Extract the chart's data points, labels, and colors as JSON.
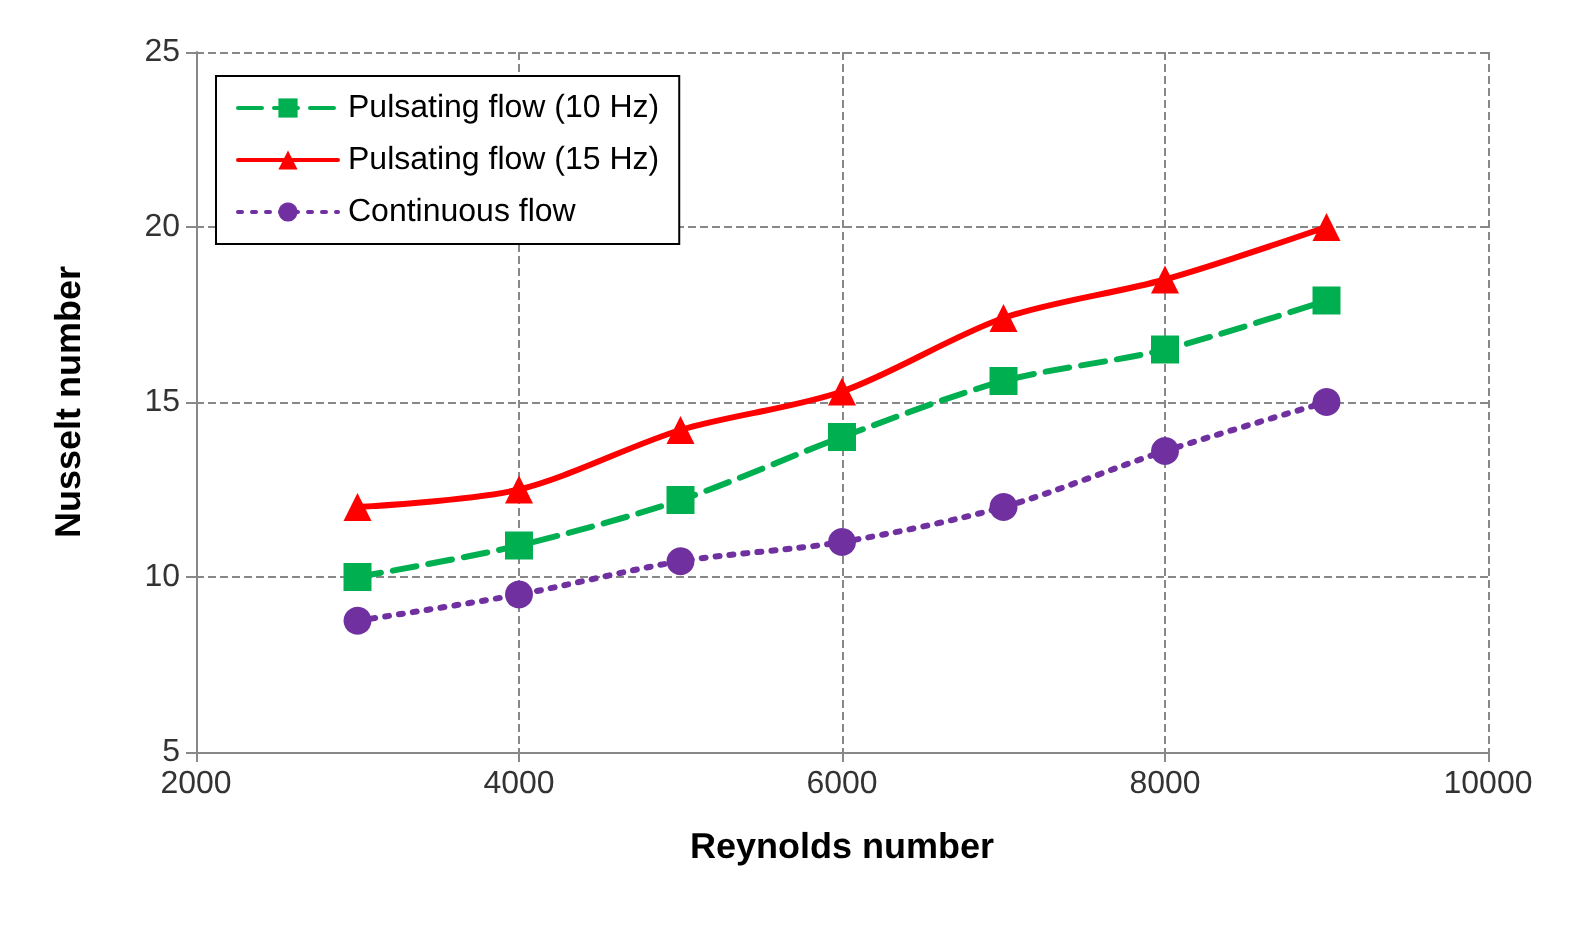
{
  "chart_data": {
    "type": "line",
    "xlabel": "Reynolds number",
    "ylabel": "Nusselt number",
    "x": [
      3000,
      4000,
      5000,
      6000,
      7000,
      8000,
      9000
    ],
    "xlim": [
      2000,
      10000
    ],
    "xticks": [
      2000,
      4000,
      6000,
      8000,
      10000
    ],
    "ylim": [
      5,
      25
    ],
    "yticks": [
      5,
      10,
      15,
      20,
      25
    ],
    "grid": true,
    "legend": "top left",
    "series": [
      {
        "name": "Pulsating flow (10 Hz)",
        "color": "#00b050",
        "marker": "square",
        "line_style": "dashed",
        "values": [
          10.0,
          10.9,
          12.2,
          14.0,
          15.6,
          16.5,
          17.9
        ]
      },
      {
        "name": "Pulsating flow (15 Hz)",
        "color": "#ff0000",
        "marker": "triangle",
        "line_style": "solid",
        "values": [
          12.0,
          12.5,
          14.2,
          15.3,
          17.4,
          18.5,
          20.0
        ]
      },
      {
        "name": "Continuous flow",
        "color": "#7030a0",
        "marker": "circle",
        "line_style": "dotted",
        "values": [
          8.75,
          9.5,
          10.45,
          11.0,
          12.0,
          13.6,
          15.0
        ]
      }
    ]
  }
}
